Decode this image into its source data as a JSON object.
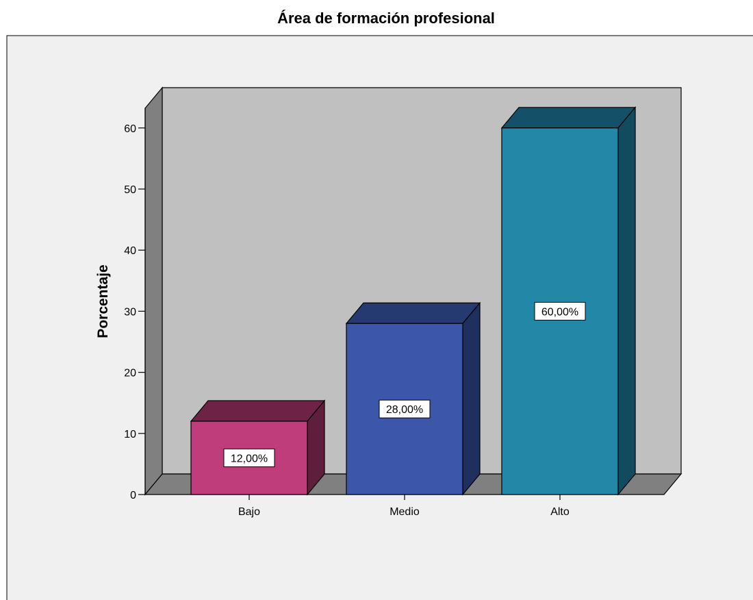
{
  "chart_data": {
    "type": "bar",
    "title": "Área de formación profesional",
    "xlabel": "",
    "ylabel": "Porcentaje",
    "categories": [
      "Bajo",
      "Medio",
      "Alto"
    ],
    "values": [
      12,
      28,
      60
    ],
    "value_labels": [
      "12,00%",
      "28,00%",
      "60,00%"
    ],
    "ylim": [
      0,
      60
    ],
    "yticks": [
      "0",
      "10",
      "20",
      "30",
      "40",
      "50",
      "60"
    ],
    "colors": {
      "Bajo": {
        "front": "#BE3D7A",
        "top": "#6E2346",
        "side": "#5E1E3C"
      },
      "Medio": {
        "front": "#3C56AA",
        "top": "#263A72",
        "side": "#1F2F5E"
      },
      "Alto": {
        "front": "#2388A7",
        "top": "#145168",
        "side": "#124A5E"
      }
    },
    "style": {
      "frame_background": "#F0F0F0",
      "plot_back_wall": "#C0C0C0",
      "plot_floor": "#808080",
      "plot_side_wall": "#808080"
    },
    "grid": false,
    "legend": "none",
    "three_d": true
  }
}
